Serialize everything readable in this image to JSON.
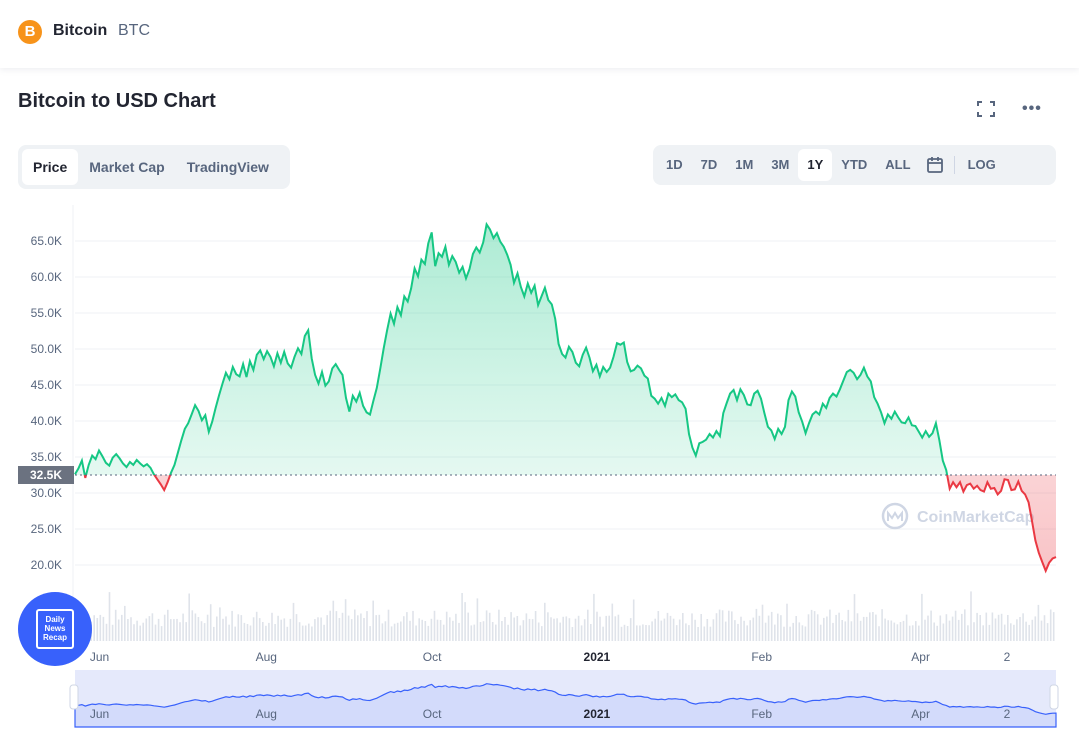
{
  "header": {
    "coin_name": "Bitcoin",
    "coin_symbol": "BTC",
    "logo_glyph": "B"
  },
  "chart_title": "Bitcoin to USD Chart",
  "tabs": [
    {
      "label": "Price",
      "active": true
    },
    {
      "label": "Market Cap",
      "active": false
    },
    {
      "label": "TradingView",
      "active": false
    }
  ],
  "ranges": [
    {
      "label": "1D"
    },
    {
      "label": "7D"
    },
    {
      "label": "1M"
    },
    {
      "label": "3M"
    },
    {
      "label": "1Y",
      "active": true
    },
    {
      "label": "YTD"
    },
    {
      "label": "ALL"
    }
  ],
  "log_label": "LOG",
  "watermark": "CoinMarketCap",
  "news_badge": {
    "line1": "Daily",
    "line2": "News",
    "line3": "Recap"
  },
  "colors": {
    "up": "#16c784",
    "down": "#ea3943",
    "navigator": "#3861fb",
    "accent": "#3861fb"
  },
  "chart_data": {
    "type": "line",
    "y_ticks": [
      "65.0K",
      "60.0K",
      "55.0K",
      "50.0K",
      "45.0K",
      "40.0K",
      "35.0K",
      "30.0K",
      "25.0K",
      "20.0K"
    ],
    "y_tick_values": [
      65000,
      60000,
      55000,
      50000,
      45000,
      40000,
      35000,
      30000,
      25000,
      20000
    ],
    "ylim": [
      15000,
      70000
    ],
    "reference_value": 32500,
    "reference_label": "32.5K",
    "x_ticks": [
      {
        "label": "Jun",
        "pos": 0.025
      },
      {
        "label": "Aug",
        "pos": 0.195
      },
      {
        "label": "Oct",
        "pos": 0.364
      },
      {
        "label": "2021",
        "pos": 0.532,
        "bold": true
      },
      {
        "label": "Feb",
        "pos": 0.7
      },
      {
        "label": "Apr",
        "pos": 0.862
      },
      {
        "label": "2",
        "pos": 0.95
      }
    ],
    "series": [
      {
        "values": [
          32600,
          33400,
          34500,
          32100,
          33900,
          35200,
          34700,
          35900,
          35100,
          34200,
          33800,
          34900,
          35400,
          34800,
          34100,
          33600,
          34300,
          33900,
          34600,
          34100,
          33700,
          34000,
          33500,
          32600,
          31900,
          31200,
          30400,
          31500,
          32800,
          33900,
          35600,
          37300,
          38900,
          39700,
          40900,
          42200,
          41400,
          40100,
          40800,
          38500,
          39900,
          41800,
          43600,
          45200,
          46700,
          45800,
          47500,
          46500,
          46200,
          47900,
          46100,
          48300,
          47100,
          49200,
          49800,
          48600,
          49700,
          48900,
          47600,
          49400,
          48100,
          49600,
          48000,
          47400,
          48900,
          50100,
          49300,
          51800,
          52600,
          48700,
          46400,
          45200,
          46800,
          44900,
          45500,
          47300,
          47900,
          47100,
          46400,
          43200,
          41300,
          43500,
          42700,
          43900,
          42100,
          41200,
          40900,
          42800,
          44600,
          47300,
          50100,
          52600,
          54900,
          53500,
          55800,
          54700,
          57300,
          56600,
          58400,
          61200,
          60100,
          62400,
          61800,
          64700,
          66200,
          61500,
          63300,
          62800,
          64200,
          61700,
          62900,
          62100,
          60600,
          61400,
          59800,
          61100,
          63200,
          64100,
          63400,
          64800,
          67300,
          66600,
          65400,
          66100,
          64900,
          64200,
          63100,
          61700,
          59200,
          60500,
          58600,
          57300,
          59100,
          57800,
          58800,
          56100,
          57300,
          58500,
          56800,
          56200,
          54200,
          50700,
          49300,
          48800,
          50300,
          49600,
          48100,
          47600,
          49200,
          50200,
          48800,
          46900,
          47800,
          46200,
          47500,
          46800,
          47400,
          48900,
          50800,
          50600,
          50900,
          48200,
          46900,
          47100,
          47700,
          47300,
          46300,
          45900,
          43500,
          43100,
          42400,
          43200,
          42100,
          43800,
          43300,
          43700,
          42900,
          42600,
          41700,
          38200,
          36300,
          35200,
          36900,
          37100,
          37400,
          38200,
          37700,
          38600,
          37900,
          41100,
          42500,
          43800,
          44300,
          42900,
          44400,
          43600,
          42300,
          42200,
          43800,
          44200,
          43100,
          41100,
          39200,
          38700,
          37500,
          38900,
          38200,
          39200,
          42900,
          44100,
          43400,
          41200,
          39900,
          38300,
          39700,
          40900,
          41300,
          40900,
          42400,
          41800,
          43200,
          43800,
          43400,
          44400,
          45600,
          46800,
          47100,
          46700,
          45800,
          46400,
          47400,
          46200,
          45500,
          43300,
          42400,
          41200,
          39700,
          40900,
          40300,
          41300,
          40500,
          39800,
          39700,
          40500,
          39400,
          39300,
          38500,
          37700,
          38600,
          37800,
          38300,
          39700,
          37300,
          34500,
          33200,
          30600,
          31500,
          30800,
          31500,
          30200,
          31100,
          31300,
          30600,
          31000,
          30400,
          30200,
          31500,
          30600,
          30700,
          29800,
          30300,
          31900,
          31800,
          30400,
          30500,
          31600,
          30300,
          29800,
          28700,
          26100,
          23400,
          21700,
          20400,
          19200,
          20300,
          20900,
          21100
        ]
      }
    ]
  }
}
